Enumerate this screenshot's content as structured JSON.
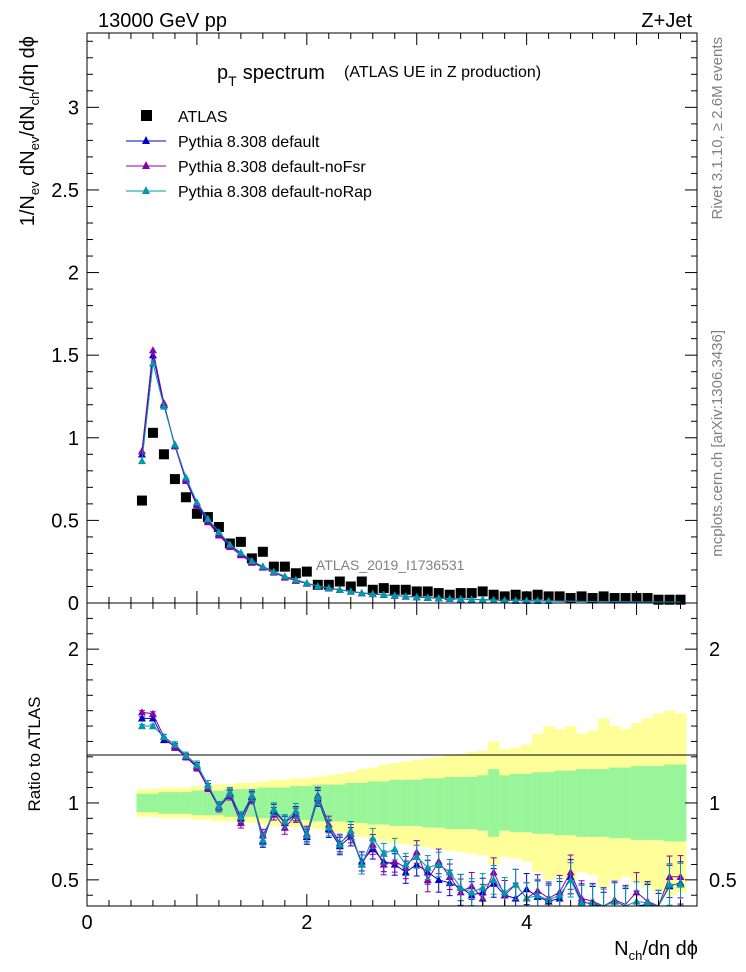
{
  "header": {
    "left": "13000 GeV pp",
    "right": "Z+Jet"
  },
  "side_labels": {
    "top": "Rivet 3.1.10, ≥ 2.6M events",
    "bottom": "mcplots.cern.ch [arXiv:1306.3436]"
  },
  "watermark": "ATLAS_2019_I1736531",
  "colors": {
    "data": "#000000",
    "default": "#0000cc",
    "noFsr": "#8800aa",
    "noRap": "#0099aa",
    "band_inner": "#99f599",
    "band_outer": "#ffff99"
  },
  "chart_data": [
    {
      "type": "scatter",
      "title": "p_T spectrum",
      "title_main": "p",
      "title_sub": "T",
      "title_rest": "spectrum",
      "title_paren": "(ATLAS UE in Z production)",
      "ylabel": "1/N_ev dN_ev/dN_ch/dη dϕ",
      "ylim": [
        0,
        3.45
      ],
      "xlim": [
        0,
        5.55
      ],
      "yticks": [
        "0",
        "0.5",
        "1",
        "1.5",
        "2",
        "2.5",
        "3"
      ],
      "legend": [
        {
          "key": "data",
          "label": "ATLAS"
        },
        {
          "key": "default",
          "label": "Pythia 8.308 default"
        },
        {
          "key": "noFsr",
          "label": "Pythia 8.308 default-noFsr"
        },
        {
          "key": "noRap",
          "label": "Pythia 8.308 default-noRap"
        }
      ],
      "x": [
        0.5,
        0.6,
        0.7,
        0.8,
        0.9,
        1.0,
        1.1,
        1.2,
        1.3,
        1.4,
        1.5,
        1.6,
        1.7,
        1.8,
        1.9,
        2.0,
        2.1,
        2.2,
        2.3,
        2.4,
        2.5,
        2.6,
        2.7,
        2.8,
        2.9,
        3.0,
        3.1,
        3.2,
        3.3,
        3.4,
        3.5,
        3.6,
        3.7,
        3.8,
        3.9,
        4.0,
        4.1,
        4.2,
        4.3,
        4.4,
        4.5,
        4.6,
        4.7,
        4.8,
        4.9,
        5.0,
        5.1,
        5.2,
        5.3,
        5.4
      ],
      "series": [
        {
          "name": "ATLAS",
          "key": "data",
          "values": [
            0.62,
            1.03,
            0.9,
            0.75,
            0.64,
            0.54,
            0.52,
            0.46,
            0.36,
            0.37,
            0.27,
            0.31,
            0.22,
            0.22,
            0.18,
            0.19,
            0.11,
            0.11,
            0.13,
            0.1,
            0.13,
            0.08,
            0.09,
            0.08,
            0.08,
            0.07,
            0.07,
            0.06,
            0.05,
            0.06,
            0.06,
            0.07,
            0.05,
            0.04,
            0.05,
            0.04,
            0.05,
            0.04,
            0.04,
            0.03,
            0.04,
            0.03,
            0.04,
            0.03,
            0.03,
            0.03,
            0.03,
            0.02,
            0.02,
            0.02
          ]
        },
        {
          "name": "Pythia 8.308 default",
          "key": "default",
          "values": [
            0.9,
            1.5,
            1.2,
            0.95,
            0.75,
            0.6,
            0.5,
            0.42,
            0.35,
            0.3,
            0.25,
            0.22,
            0.19,
            0.16,
            0.14,
            0.12,
            0.1,
            0.09,
            0.08,
            0.07,
            0.06,
            0.055,
            0.05,
            0.045,
            0.04,
            0.036,
            0.032,
            0.029,
            0.026,
            0.024,
            0.022,
            0.02,
            0.018,
            0.016,
            0.015,
            0.014,
            0.013,
            0.012,
            0.011,
            0.01,
            0.009,
            0.0085,
            0.008,
            0.0075,
            0.007,
            0.0065,
            0.006,
            0.0055,
            0.005,
            0.0045
          ]
        },
        {
          "name": "Pythia 8.308 default-noFsr",
          "key": "noFsr",
          "values": [
            0.92,
            1.53,
            1.21,
            0.95,
            0.74,
            0.59,
            0.49,
            0.41,
            0.34,
            0.29,
            0.245,
            0.215,
            0.185,
            0.155,
            0.135,
            0.118,
            0.1,
            0.09,
            0.08,
            0.07,
            0.06,
            0.055,
            0.05,
            0.045,
            0.04,
            0.036,
            0.032,
            0.029,
            0.026,
            0.024,
            0.022,
            0.02,
            0.018,
            0.016,
            0.015,
            0.014,
            0.013,
            0.012,
            0.011,
            0.01,
            0.009,
            0.0085,
            0.008,
            0.0075,
            0.007,
            0.0065,
            0.006,
            0.0055,
            0.005,
            0.0045
          ]
        },
        {
          "name": "Pythia 8.308 default-noRap",
          "key": "noRap",
          "values": [
            0.86,
            1.45,
            1.19,
            0.96,
            0.76,
            0.61,
            0.51,
            0.43,
            0.355,
            0.305,
            0.255,
            0.222,
            0.19,
            0.162,
            0.142,
            0.121,
            0.102,
            0.092,
            0.081,
            0.071,
            0.061,
            0.056,
            0.051,
            0.046,
            0.041,
            0.037,
            0.033,
            0.03,
            0.027,
            0.025,
            0.023,
            0.021,
            0.019,
            0.017,
            0.016,
            0.015,
            0.014,
            0.013,
            0.012,
            0.011,
            0.0095,
            0.009,
            0.0085,
            0.008,
            0.0075,
            0.007,
            0.0065,
            0.006,
            0.0055,
            0.005
          ]
        }
      ]
    },
    {
      "type": "line",
      "ylabel": "Ratio to ATLAS",
      "xlabel": "N_ch/dη dϕ",
      "xlim": [
        0,
        5.55
      ],
      "ylim": [
        0.33,
        2.3
      ],
      "xticks": [
        "0",
        "2",
        "4"
      ],
      "yticks": [
        "0.5",
        "1",
        "2"
      ],
      "x": [
        0.5,
        0.6,
        0.7,
        0.8,
        0.9,
        1.0,
        1.1,
        1.2,
        1.3,
        1.4,
        1.5,
        1.6,
        1.7,
        1.8,
        1.9,
        2.0,
        2.1,
        2.2,
        2.3,
        2.4,
        2.5,
        2.6,
        2.7,
        2.8,
        2.9,
        3.0,
        3.1,
        3.2,
        3.3,
        3.4,
        3.5,
        3.6,
        3.7,
        3.8,
        3.9,
        4.0,
        4.1,
        4.2,
        4.3,
        4.4,
        4.5,
        4.6,
        4.7,
        4.8,
        4.9,
        5.0,
        5.1,
        5.2,
        5.3,
        5.4
      ],
      "band_inner": [
        0.06,
        0.06,
        0.07,
        0.07,
        0.07,
        0.08,
        0.08,
        0.08,
        0.09,
        0.09,
        0.09,
        0.1,
        0.1,
        0.1,
        0.11,
        0.11,
        0.12,
        0.12,
        0.12,
        0.13,
        0.13,
        0.14,
        0.14,
        0.15,
        0.15,
        0.15,
        0.16,
        0.16,
        0.17,
        0.17,
        0.17,
        0.18,
        0.22,
        0.18,
        0.19,
        0.19,
        0.2,
        0.2,
        0.21,
        0.21,
        0.22,
        0.22,
        0.22,
        0.23,
        0.23,
        0.24,
        0.24,
        0.24,
        0.25,
        0.25
      ],
      "band_outer": [
        0.09,
        0.09,
        0.1,
        0.1,
        0.1,
        0.11,
        0.11,
        0.12,
        0.12,
        0.13,
        0.13,
        0.14,
        0.15,
        0.15,
        0.16,
        0.16,
        0.17,
        0.18,
        0.19,
        0.2,
        0.22,
        0.23,
        0.25,
        0.26,
        0.27,
        0.28,
        0.29,
        0.3,
        0.31,
        0.32,
        0.33,
        0.34,
        0.4,
        0.35,
        0.36,
        0.38,
        0.45,
        0.5,
        0.48,
        0.5,
        0.45,
        0.47,
        0.55,
        0.5,
        0.48,
        0.52,
        0.55,
        0.58,
        0.6,
        0.58
      ],
      "series": [
        {
          "name": "Pythia 8.308 default",
          "key": "default",
          "values": [
            1.55,
            1.55,
            1.41,
            1.37,
            1.3,
            1.24,
            1.1,
            0.98,
            1.06,
            0.9,
            1.04,
            0.75,
            0.95,
            0.87,
            0.93,
            0.78,
            1.03,
            0.83,
            0.72,
            0.78,
            0.62,
            0.7,
            0.62,
            0.6,
            0.55,
            0.6,
            0.55,
            0.5,
            0.48,
            0.45,
            0.4,
            0.42,
            0.48,
            0.4,
            0.38,
            0.44,
            0.39,
            0.36,
            0.38,
            0.52,
            0.36,
            0.34,
            0.3,
            0.36,
            0.32,
            0.3,
            0.34,
            0.28,
            0.46,
            0.48
          ]
        },
        {
          "name": "Pythia 8.308 default-noFsr",
          "key": "noFsr",
          "values": [
            1.59,
            1.58,
            1.43,
            1.36,
            1.3,
            1.23,
            1.1,
            0.97,
            1.05,
            0.87,
            1.03,
            0.79,
            0.93,
            0.84,
            0.92,
            0.8,
            1.05,
            0.86,
            0.74,
            0.8,
            0.6,
            0.73,
            0.6,
            0.62,
            0.58,
            0.68,
            0.5,
            0.62,
            0.52,
            0.42,
            0.46,
            0.38,
            0.55,
            0.4,
            0.47,
            0.38,
            0.43,
            0.38,
            0.42,
            0.55,
            0.38,
            0.36,
            0.33,
            0.37,
            0.34,
            0.42,
            0.36,
            0.3,
            0.52,
            0.52
          ]
        },
        {
          "name": "Pythia 8.308 default-noRap",
          "key": "noRap",
          "values": [
            1.5,
            1.5,
            1.43,
            1.38,
            1.31,
            1.25,
            1.12,
            0.98,
            1.07,
            0.91,
            1.05,
            0.76,
            0.96,
            0.88,
            0.95,
            0.79,
            1.04,
            0.84,
            0.73,
            0.82,
            0.6,
            0.77,
            0.67,
            0.7,
            0.6,
            0.65,
            0.58,
            0.6,
            0.55,
            0.45,
            0.42,
            0.45,
            0.5,
            0.42,
            0.47,
            0.38,
            0.4,
            0.37,
            0.4,
            0.5,
            0.35,
            0.35,
            0.32,
            0.36,
            0.33,
            0.36,
            0.35,
            0.3,
            0.47,
            0.47
          ]
        }
      ]
    }
  ]
}
